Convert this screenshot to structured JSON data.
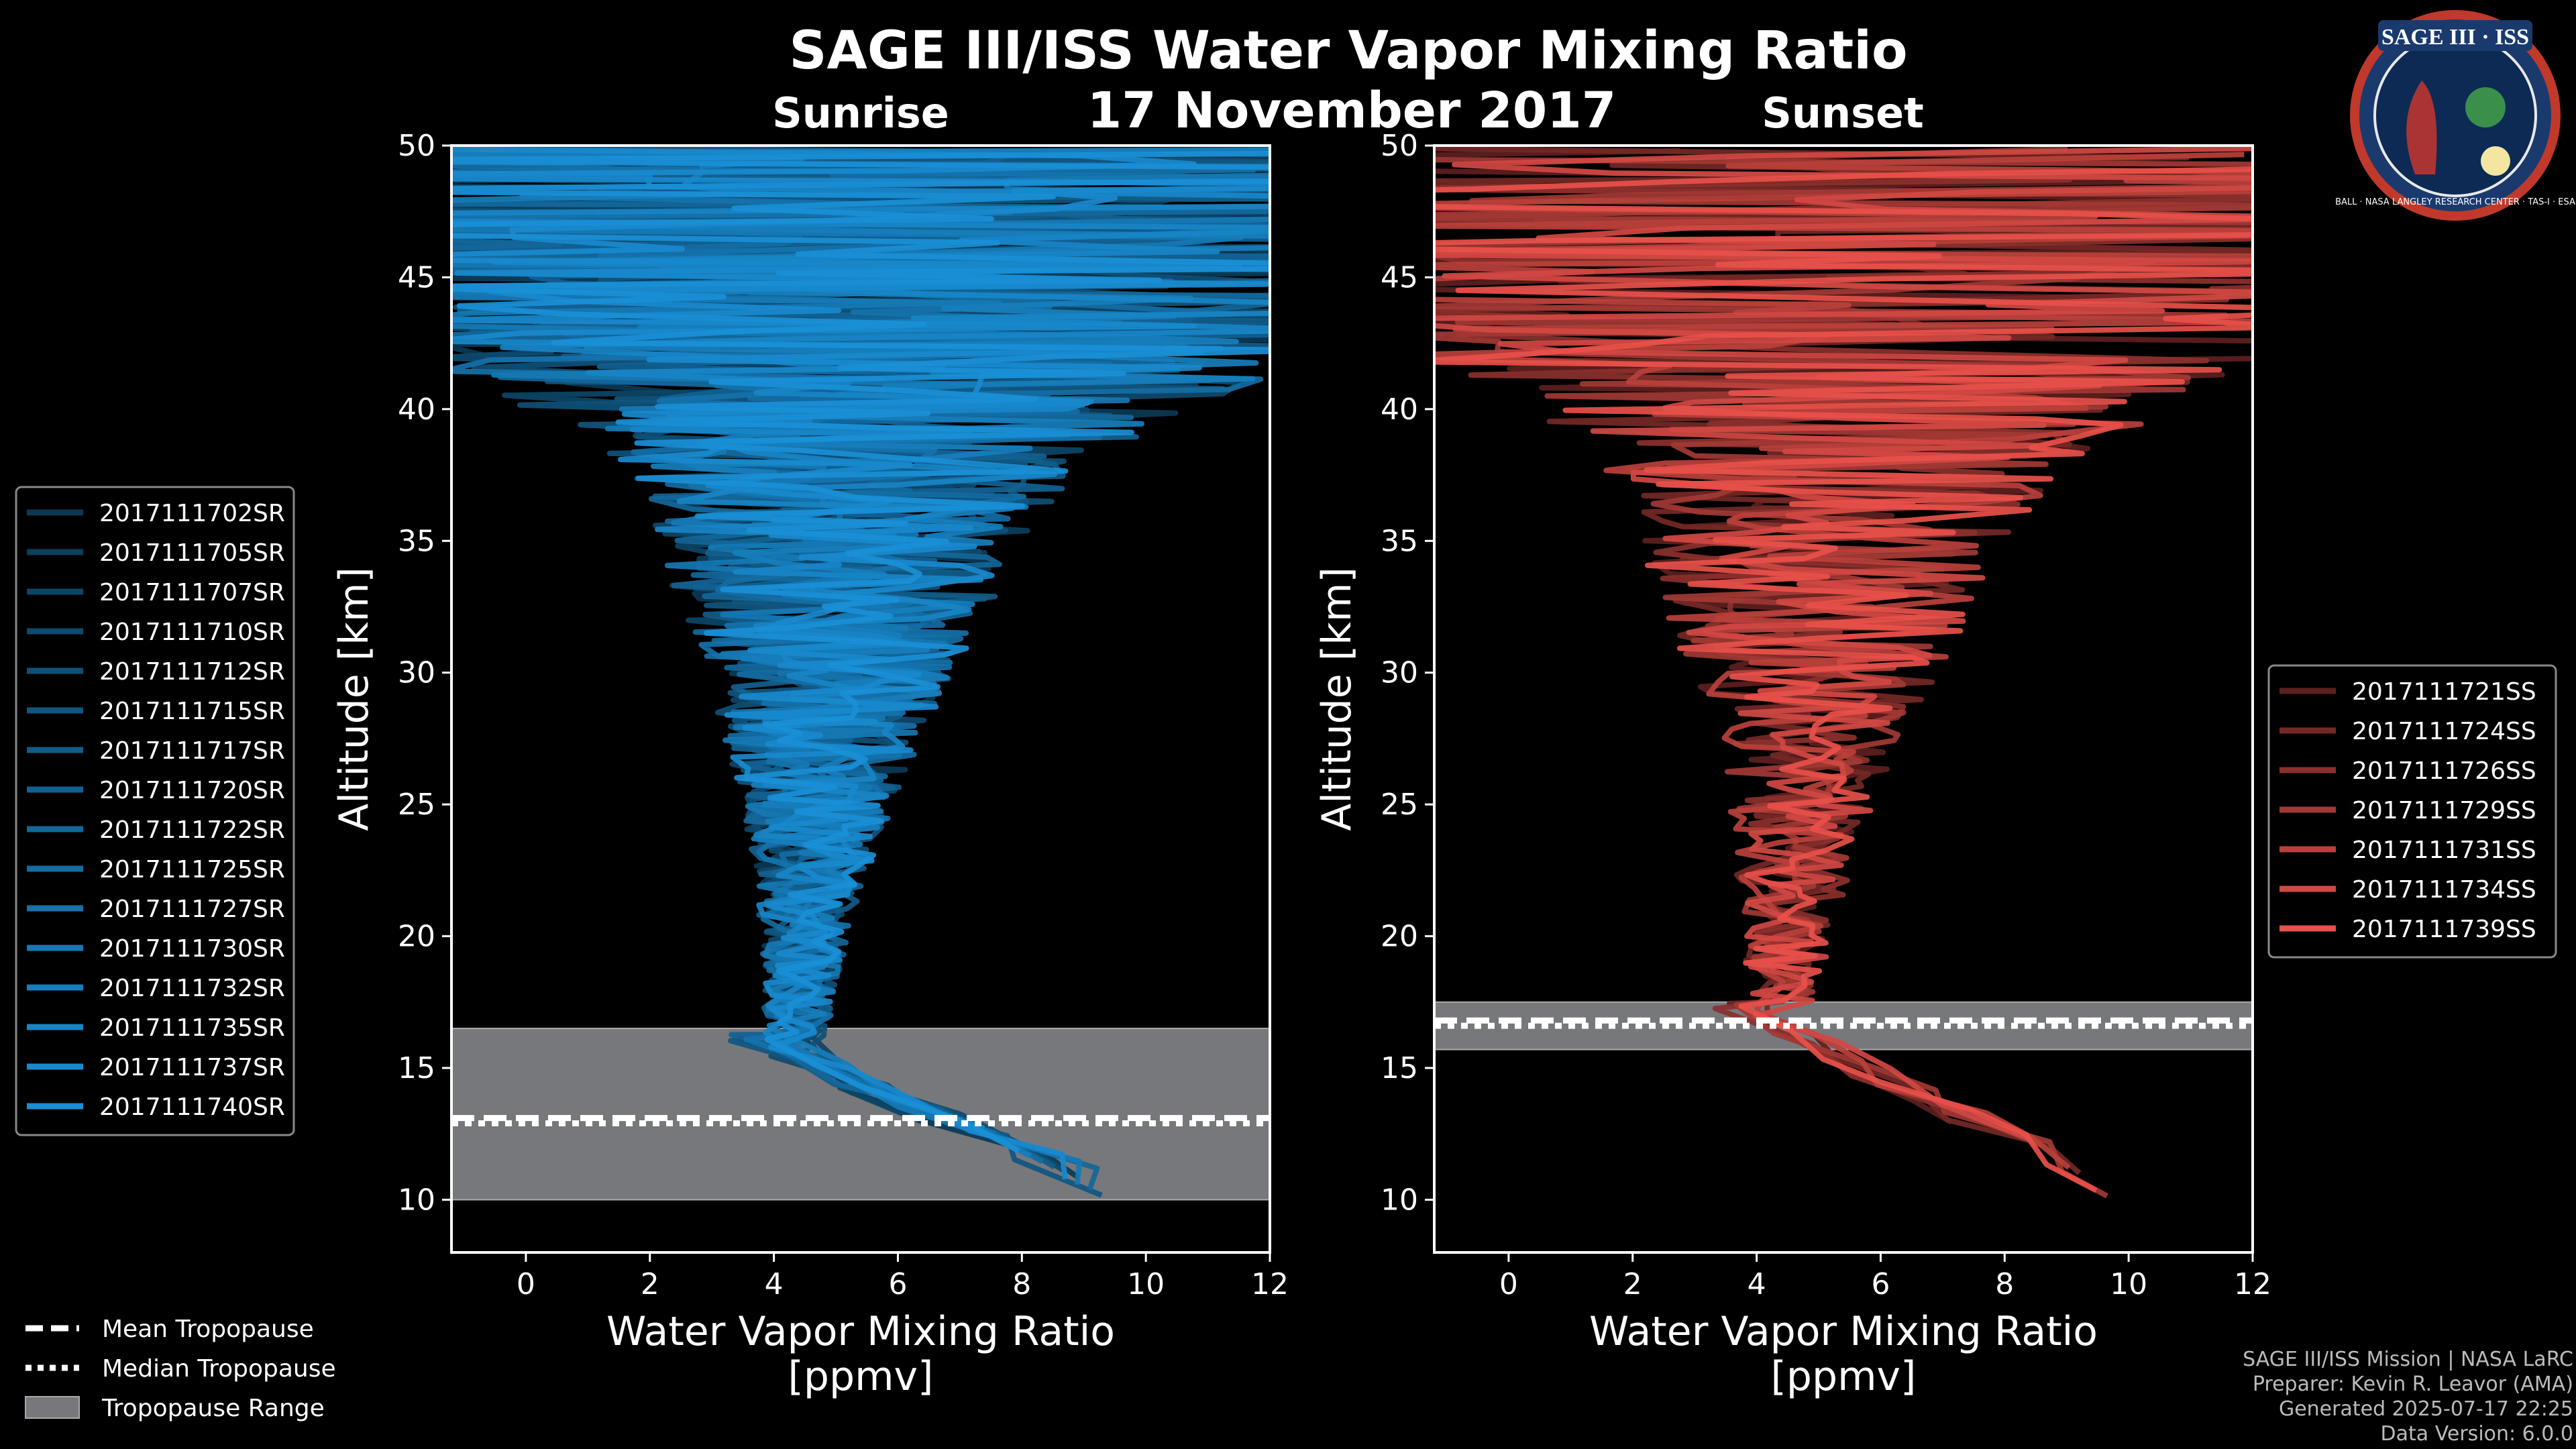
{
  "chart_data": {
    "type": "line",
    "title": "SAGE III/ISS Water Vapor Mixing Ratio",
    "date": "17 November 2017",
    "panels": [
      {
        "name": "sunrise",
        "subtitle": "Sunrise",
        "color": "#1a8fd6",
        "xlabel": "Water Vapor Mixing Ratio",
        "xunits": "[ppmv]",
        "ylabel": "Altitude [km]",
        "xlim": [
          -1.2,
          12
        ],
        "ylim": [
          8,
          50
        ],
        "xticks": [
          "0",
          "2",
          "4",
          "6",
          "8",
          "10",
          "12"
        ],
        "yticks": [
          "10",
          "15",
          "20",
          "25",
          "30",
          "35",
          "40",
          "45",
          "50"
        ],
        "tropopause": {
          "mean": 13.1,
          "median": 12.9,
          "range": [
            10.0,
            16.5
          ]
        },
        "series": [
          "2017111702SR",
          "2017111705SR",
          "2017111707SR",
          "2017111710SR",
          "2017111712SR",
          "2017111715SR",
          "2017111717SR",
          "2017111720SR",
          "2017111722SR",
          "2017111725SR",
          "2017111727SR",
          "2017111730SR",
          "2017111732SR",
          "2017111735SR",
          "2017111737SR",
          "2017111740SR"
        ]
      },
      {
        "name": "sunset",
        "subtitle": "Sunset",
        "color": "#e8504a",
        "xlabel": "Water Vapor Mixing Ratio",
        "xunits": "[ppmv]",
        "ylabel": "Altitude [km]",
        "xlim": [
          -1.2,
          12
        ],
        "ylim": [
          8,
          50
        ],
        "xticks": [
          "0",
          "2",
          "4",
          "6",
          "8",
          "10",
          "12"
        ],
        "yticks": [
          "10",
          "15",
          "20",
          "25",
          "30",
          "35",
          "40",
          "45",
          "50"
        ],
        "tropopause": {
          "mean": 16.8,
          "median": 16.6,
          "range": [
            15.7,
            17.5
          ]
        },
        "series": [
          "2017111721SS",
          "2017111724SS",
          "2017111726SS",
          "2017111729SS",
          "2017111731SS",
          "2017111734SS",
          "2017111739SS"
        ]
      }
    ],
    "legend_tropopause": [
      "Mean Tropopause",
      "Median Tropopause",
      "Tropopause Range"
    ]
  },
  "logo": {
    "text": "SAGE III · ISS",
    "ring_text": "BALL · NASA LANGLEY RESEARCH CENTER · TAS-I · ESA"
  },
  "footer": [
    "SAGE III/ISS Mission | NASA LaRC",
    "Preparer: Kevin R. Leavor (AMA)",
    "Generated 2025-07-17 22:25",
    "Data Version: 6.0.0"
  ]
}
